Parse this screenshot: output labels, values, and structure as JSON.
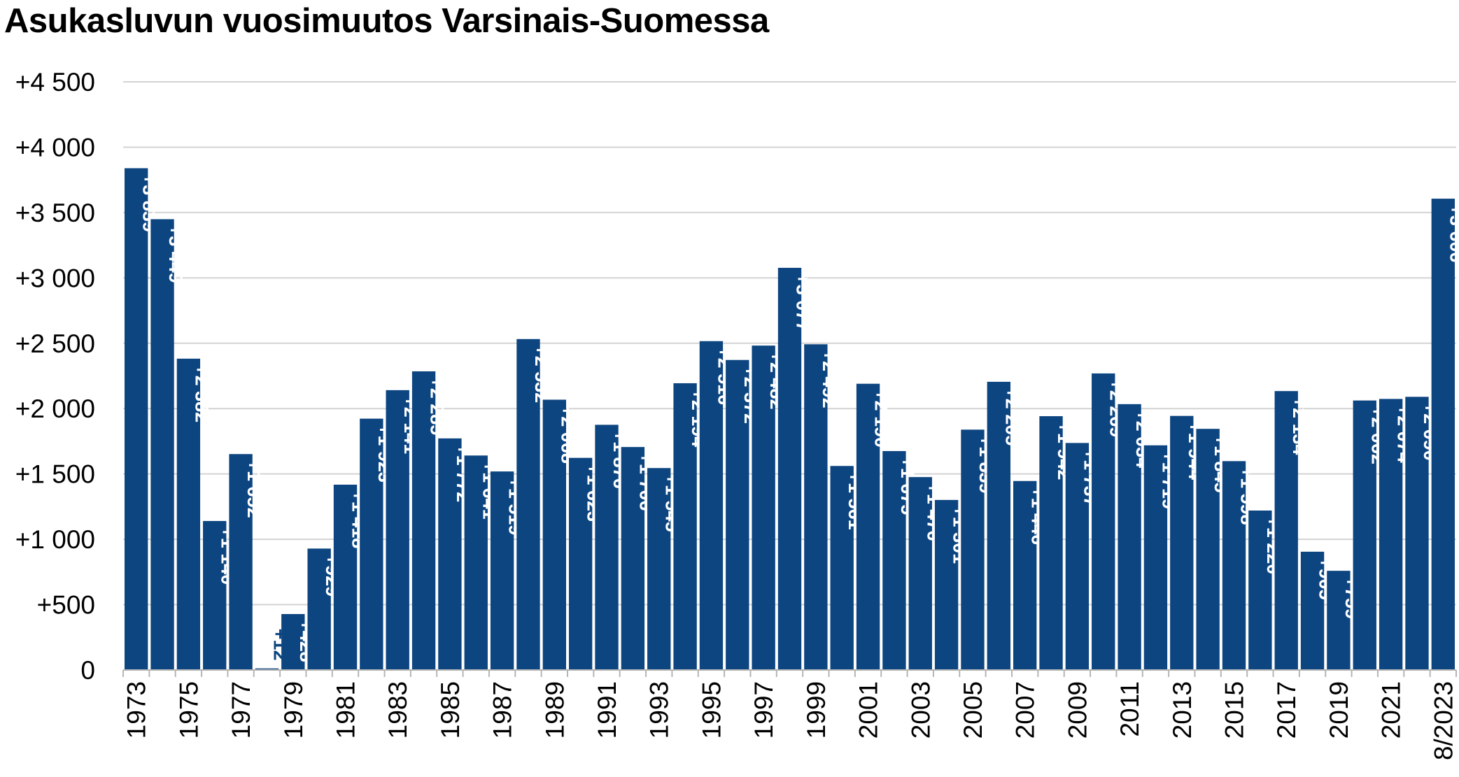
{
  "chart_data": {
    "type": "bar",
    "title": "Asukasluvun vuosimuutos Varsinais-Suomessa",
    "xlabel": "",
    "ylabel": "",
    "ylim": [
      0,
      4500
    ],
    "grid": true,
    "legend": "none",
    "colors": {
      "bar": "#0d4580",
      "grid": "#d3d3d3",
      "label_inside": "#ffffff",
      "label_outside": "#0d4580"
    },
    "y_ticks": [
      0,
      500,
      1000,
      1500,
      2000,
      2500,
      3000,
      3500,
      4000,
      4500
    ],
    "y_tick_labels": [
      "0",
      "+500",
      "+1 000",
      "+1 500",
      "+2 000",
      "+2 500",
      "+3 000",
      "+3 500",
      "+4 000",
      "+4 500"
    ],
    "categories": [
      "1973",
      "1974",
      "1975",
      "1976",
      "1977",
      "1978",
      "1979",
      "1980",
      "1981",
      "1982",
      "1983",
      "1984",
      "1985",
      "1986",
      "1987",
      "1988",
      "1989",
      "1990",
      "1991",
      "1992",
      "1993",
      "1994",
      "1995",
      "1996",
      "1997",
      "1998",
      "1999",
      "2000",
      "2001",
      "2002",
      "2003",
      "2004",
      "2005",
      "2006",
      "2007",
      "2008",
      "2009",
      "2010",
      "2011",
      "2012",
      "2013",
      "2014",
      "2015",
      "2016",
      "2017",
      "2018",
      "2019",
      "2020",
      "2021",
      "2022",
      "8/2023"
    ],
    "x_tick_labels": [
      "1973",
      "",
      "1975",
      "",
      "1977",
      "",
      "1979",
      "",
      "1981",
      "",
      "1983",
      "",
      "1985",
      "",
      "1987",
      "",
      "1989",
      "",
      "1991",
      "",
      "1993",
      "",
      "1995",
      "",
      "1997",
      "",
      "1999",
      "",
      "2001",
      "",
      "2003",
      "",
      "2005",
      "",
      "2007",
      "",
      "2009",
      "",
      "2011",
      "",
      "2013",
      "",
      "2015",
      "",
      "2017",
      "",
      "2019",
      "",
      "2021",
      "",
      "8/2023"
    ],
    "values": [
      3839,
      3449,
      2382,
      1140,
      1652,
      12,
      428,
      929,
      1418,
      1923,
      2141,
      2285,
      1772,
      1641,
      1519,
      2532,
      2068,
      1623,
      1876,
      1706,
      1545,
      2194,
      2516,
      2372,
      2482,
      3077,
      2492,
      1561,
      2190,
      1675,
      1476,
      1301,
      1839,
      2205,
      1446,
      1942,
      1737,
      2269,
      2034,
      1719,
      1944,
      1845,
      1598,
      1220,
      2134,
      905,
      759,
      2062,
      2074,
      2090,
      3606
    ],
    "value_labels": [
      "+3 839",
      "+3 449",
      "+2 382",
      "+1 140",
      "+1 652",
      "+12",
      "+428",
      "+929",
      "+1 418",
      "+1 923",
      "+2 141",
      "+2 285",
      "+1 772",
      "+1 641",
      "+1 519",
      "+2 532",
      "+2 068",
      "+1 623",
      "+1 876",
      "+1 706",
      "+1 545",
      "+2 194",
      "+2 516",
      "+2 372",
      "+2 482",
      "+3 077",
      "+2 492",
      "+1 561",
      "+2 190",
      "+1 675",
      "+1 476",
      "+1 301",
      "+1 839",
      "+2 205",
      "+1 446",
      "+1 942",
      "+1 737",
      "+2 269",
      "+2 034",
      "+1 719",
      "+1 944",
      "+1 845",
      "+1 598",
      "+1 220",
      "+2 134",
      "+905",
      "+759",
      "+2 062",
      "+2 074",
      "+2 090",
      "+3 606"
    ]
  }
}
